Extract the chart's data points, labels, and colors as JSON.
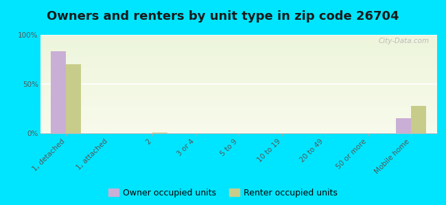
{
  "title": "Owners and renters by unit type in zip code 26704",
  "categories": [
    "1, detached",
    "1, attached",
    "2",
    "3 or 4",
    "5 to 9",
    "10 to 19",
    "20 to 49",
    "50 or more",
    "Mobile home"
  ],
  "owner_values": [
    83,
    0,
    0,
    0,
    0,
    0,
    0,
    0,
    15
  ],
  "renter_values": [
    70,
    0,
    1,
    0,
    0,
    0,
    0,
    0,
    28
  ],
  "owner_color": "#c9aed6",
  "renter_color": "#c8cc8a",
  "background_cyan": "#00e5ff",
  "ylabel_ticks": [
    "0%",
    "50%",
    "100%"
  ],
  "ytick_vals": [
    0,
    50,
    100
  ],
  "ylim": [
    0,
    100
  ],
  "bar_width": 0.35,
  "legend_owner": "Owner occupied units",
  "legend_renter": "Renter occupied units",
  "watermark": "City-Data.com",
  "title_fontsize": 13,
  "tick_fontsize": 7.5,
  "legend_fontsize": 9
}
